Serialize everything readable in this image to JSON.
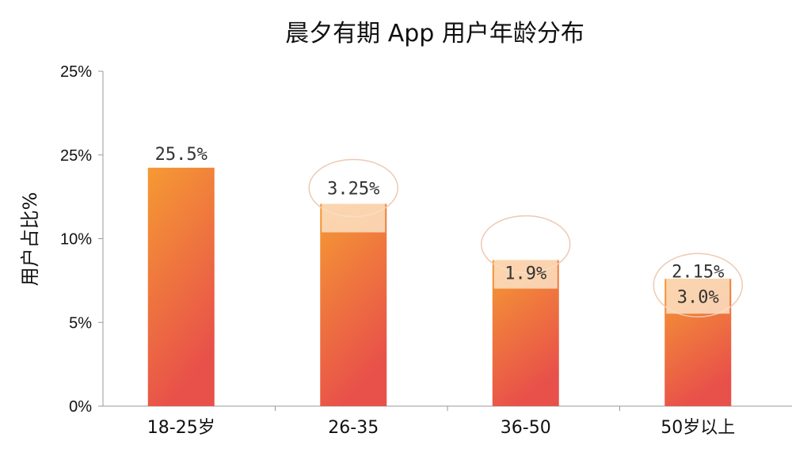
{
  "colors": {
    "bar_top": "#f59a33",
    "bar_bottom": "#e8504a",
    "label_box": "#fbe0c4",
    "label_circle": "#eec9b4",
    "axis": "#999999",
    "text": "#111111",
    "value_text": "#333333"
  },
  "chart_data": {
    "type": "bar",
    "title": "晨夕有期 App 用户年龄分布",
    "xlabel": "",
    "ylabel": "用户占比%",
    "yticks": [
      "0%",
      "5%",
      "10%",
      "25%",
      "25%"
    ],
    "ylim": [
      0,
      25
    ],
    "grid": false,
    "categories": [
      "18-25岁",
      "26-35",
      "36-50",
      "50岁以上"
    ],
    "values": [
      17.8,
      15.1,
      10.9,
      9.5
    ],
    "data_labels": [
      [
        "25.5%"
      ],
      [
        "3.25%"
      ],
      [
        "1.9%"
      ],
      [
        "2.15%",
        "3.0%"
      ]
    ]
  }
}
